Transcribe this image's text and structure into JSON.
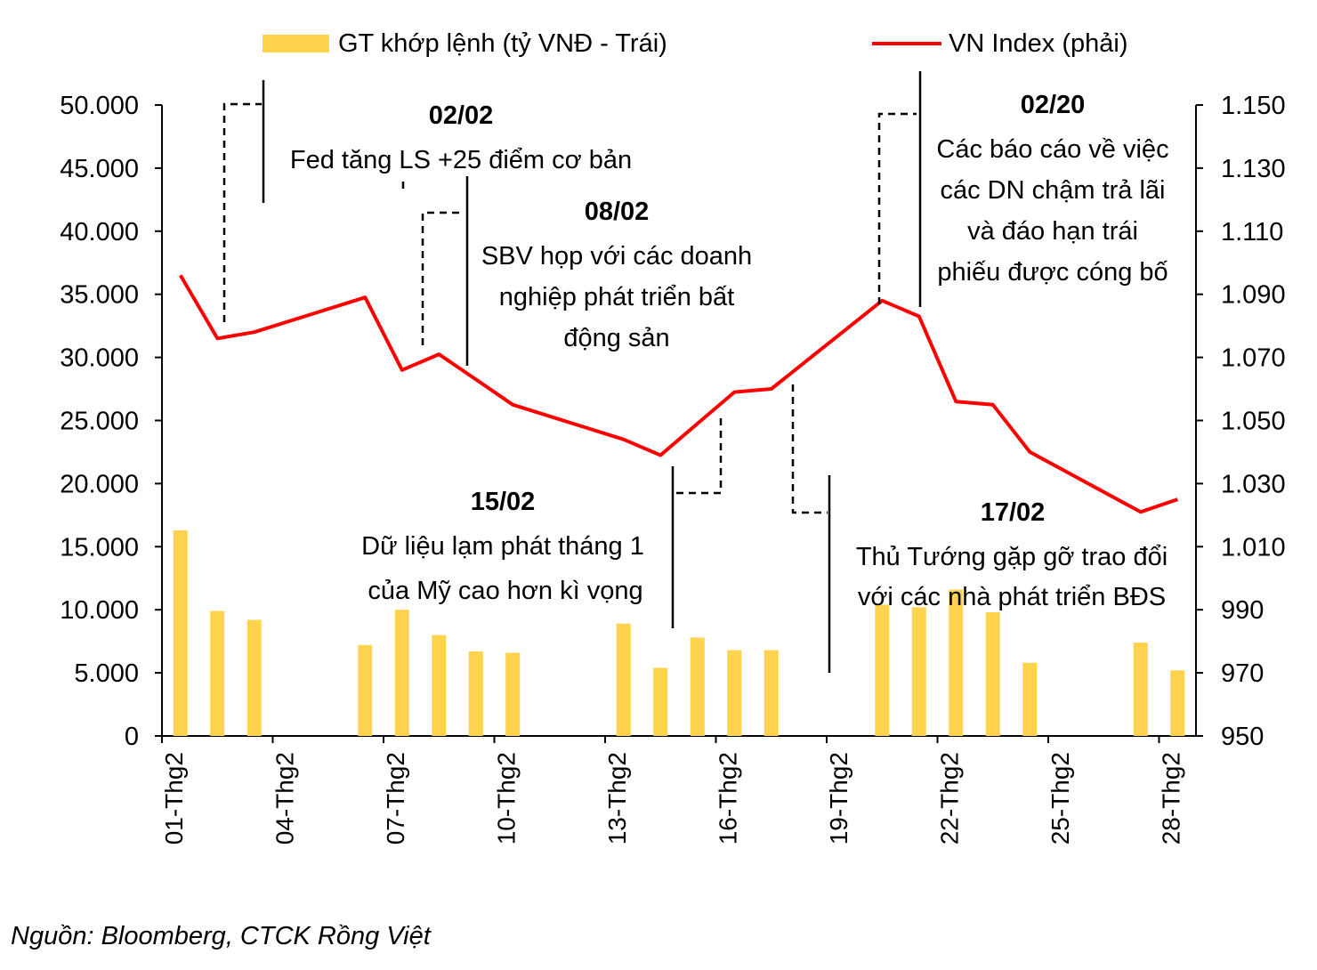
{
  "chart_data": {
    "type": "bar+line",
    "dates": [
      "01-Thg2",
      "02-Thg2",
      "03-Thg2",
      "06-Thg2",
      "07-Thg2",
      "08-Thg2",
      "09-Thg2",
      "10-Thg2",
      "13-Thg2",
      "14-Thg2",
      "15-Thg2",
      "16-Thg2",
      "17-Thg2",
      "20-Thg2",
      "21-Thg2",
      "22-Thg2",
      "23-Thg2",
      "24-Thg2",
      "27-Thg2",
      "28-Thg2"
    ],
    "x_index": [
      0,
      1,
      2,
      5,
      6,
      7,
      8,
      9,
      12,
      13,
      14,
      15,
      16,
      19,
      20,
      21,
      22,
      23,
      26,
      27
    ],
    "x_tick_labels": [
      "01-Thg2",
      "04-Thg2",
      "07-Thg2",
      "10-Thg2",
      "13-Thg2",
      "16-Thg2",
      "19-Thg2",
      "22-Thg2",
      "25-Thg2",
      "28-Thg2"
    ],
    "x_tick_index": [
      0,
      3,
      6,
      9,
      12,
      15,
      18,
      21,
      24,
      27
    ],
    "series": [
      {
        "name": "GT khớp lệnh (tỷ VNĐ - Trái)",
        "type": "bar",
        "axis": "left",
        "color": "#FFD34E",
        "values": [
          16300,
          9900,
          9200,
          7200,
          10000,
          8000,
          6700,
          6600,
          8900,
          5400,
          7800,
          6800,
          6800,
          10400,
          10200,
          11600,
          9800,
          5800,
          7400,
          5200
        ]
      },
      {
        "name": "VN Index (phải)",
        "type": "line",
        "axis": "right",
        "color": "#FF0000",
        "values": [
          1096,
          1076,
          1078,
          1089,
          1066,
          1071,
          1063,
          1055,
          1044,
          1039,
          1049,
          1059,
          1060,
          1088,
          1083,
          1056,
          1055,
          1040,
          1021,
          1025
        ]
      }
    ],
    "y_left": {
      "ylim": [
        0,
        50000
      ],
      "ticks": [
        "0",
        "5.000",
        "10.000",
        "15.000",
        "20.000",
        "25.000",
        "30.000",
        "35.000",
        "40.000",
        "45.000",
        "50.000"
      ]
    },
    "y_right": {
      "ylim": [
        950,
        1150
      ],
      "ticks": [
        "950",
        "970",
        "990",
        "1.010",
        "1.030",
        "1.050",
        "1.070",
        "1.090",
        "1.110",
        "1.130",
        "1.150"
      ]
    },
    "legend": {
      "bar_label": "GT khớp lệnh (tỷ VNĐ - Trái)",
      "line_label": "VN Index (phải)",
      "placement": "top"
    },
    "annotations": [
      {
        "date": "02/02",
        "lines": [
          "Fed tăng LS +25 điểm cơ bản"
        ]
      },
      {
        "date": "08/02",
        "lines": [
          "SBV họp với các doanh",
          "nghiệp phát triển bất",
          "động sản"
        ]
      },
      {
        "date": "15/02",
        "lines": [
          "Dữ liệu lạm phát tháng 1",
          "của Mỹ cao hơn kì vọng"
        ]
      },
      {
        "date": "17/02",
        "lines": [
          "Thủ Tướng gặp gỡ trao đổi",
          "với các nhà phát triển BĐS"
        ]
      },
      {
        "date": "02/20",
        "lines": [
          "Các báo cáo về việc",
          "các DN chậm trả lãi",
          "và đáo hạn trái",
          "phiếu được cóng bố"
        ]
      }
    ],
    "grid": false
  },
  "source": "Nguồn: Bloomberg, CTCK Rồng Việt"
}
